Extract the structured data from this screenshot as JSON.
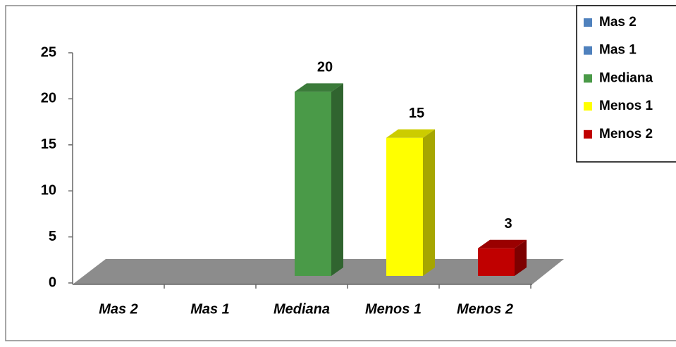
{
  "chart_data": {
    "type": "bar3d",
    "categories": [
      "Mas 2",
      "Mas 1",
      "Mediana",
      "Menos 1",
      "Menos 2"
    ],
    "series": [
      {
        "name": "Mas 2",
        "color": "#4f81bd",
        "values": [
          null,
          null,
          null,
          null,
          null
        ]
      },
      {
        "name": "Mas 1",
        "color": "#4f81bd",
        "values": [
          null,
          null,
          null,
          null,
          null
        ]
      },
      {
        "name": "Mediana",
        "color": "#4a9a48",
        "values": [
          null,
          null,
          20,
          null,
          null
        ]
      },
      {
        "name": "Menos 1",
        "color": "#ffff00",
        "values": [
          null,
          null,
          null,
          15,
          null
        ]
      },
      {
        "name": "Menos 2",
        "color": "#c00000",
        "values": [
          null,
          null,
          null,
          null,
          3
        ]
      }
    ],
    "ylim": [
      0,
      25
    ],
    "yticks": [
      0,
      5,
      10,
      15,
      20,
      25
    ],
    "legend": "top-right"
  }
}
